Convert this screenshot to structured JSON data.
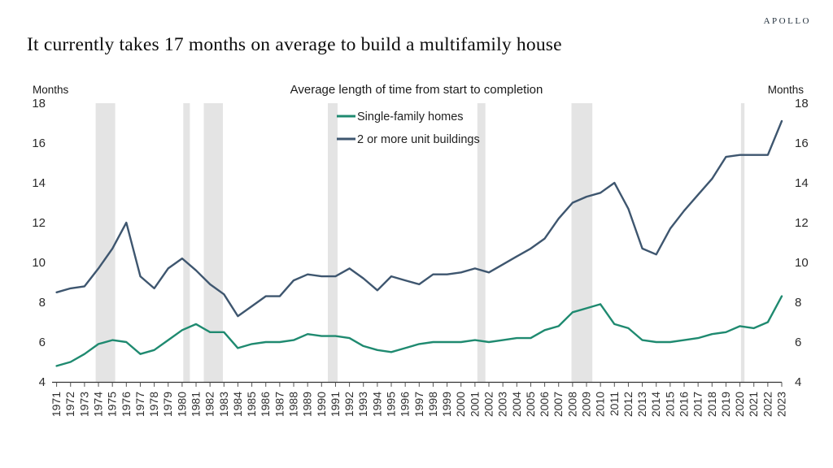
{
  "brand": {
    "logo_text": "APOLLO"
  },
  "header": {
    "title": "It currently takes 17 months on average to build a multifamily house"
  },
  "chart": {
    "subtitle": "Average length of time from start to completion",
    "y_axis_label_left": "Months",
    "y_axis_label_right": "Months"
  },
  "chart_data": {
    "type": "line",
    "title": "Average length of time from start to completion",
    "xlabel": "",
    "ylabel": "Months",
    "ylim": [
      4,
      18
    ],
    "yticks": [
      4,
      6,
      8,
      10,
      12,
      14,
      16,
      18
    ],
    "grid": false,
    "legend_position": "top-center-inside",
    "x": [
      1971,
      1972,
      1973,
      1974,
      1975,
      1976,
      1977,
      1978,
      1979,
      1980,
      1981,
      1982,
      1983,
      1984,
      1985,
      1986,
      1987,
      1988,
      1989,
      1990,
      1991,
      1992,
      1993,
      1994,
      1995,
      1996,
      1997,
      1998,
      1999,
      2000,
      2001,
      2002,
      2003,
      2004,
      2005,
      2006,
      2007,
      2008,
      2009,
      2010,
      2011,
      2012,
      2013,
      2014,
      2015,
      2016,
      2017,
      2018,
      2019,
      2020,
      2021,
      2022,
      2023
    ],
    "series": [
      {
        "name": "Single-family homes",
        "color": "#1f8a70",
        "values": [
          4.8,
          5.0,
          5.4,
          5.9,
          6.1,
          6.0,
          5.4,
          5.6,
          6.1,
          6.6,
          6.9,
          6.5,
          6.5,
          5.7,
          5.9,
          6.0,
          6.0,
          6.1,
          6.4,
          6.3,
          6.3,
          6.2,
          5.8,
          5.6,
          5.5,
          5.7,
          5.9,
          6.0,
          6.0,
          6.0,
          6.1,
          6.0,
          6.1,
          6.2,
          6.2,
          6.6,
          6.8,
          7.5,
          7.7,
          7.9,
          6.9,
          6.7,
          6.1,
          6.0,
          6.0,
          6.1,
          6.2,
          6.4,
          6.5,
          6.8,
          6.7,
          7.0,
          8.3
        ]
      },
      {
        "name": "2 or more unit buildings",
        "color": "#3e566f",
        "values": [
          8.5,
          8.7,
          8.8,
          9.7,
          10.7,
          12.0,
          9.3,
          8.7,
          9.7,
          10.2,
          9.6,
          8.9,
          8.4,
          7.3,
          7.8,
          8.3,
          8.3,
          9.1,
          9.4,
          9.3,
          9.3,
          9.7,
          9.2,
          8.6,
          9.3,
          9.1,
          8.9,
          9.4,
          9.4,
          9.5,
          9.7,
          9.5,
          9.9,
          10.3,
          10.7,
          11.2,
          12.2,
          13.0,
          13.3,
          13.5,
          14.0,
          12.7,
          10.7,
          10.4,
          11.7,
          12.6,
          13.4,
          14.2,
          15.3,
          15.4,
          15.4,
          15.4,
          17.1
        ]
      }
    ],
    "recession_shading_color": "#e4e4e4",
    "recession_bands": [
      [
        1973.8,
        1975.2
      ],
      [
        1980.08,
        1980.55
      ],
      [
        1981.55,
        1982.92
      ],
      [
        1990.45,
        1991.15
      ],
      [
        2001.17,
        2001.75
      ],
      [
        2007.92,
        2009.42
      ],
      [
        2020.08,
        2020.33
      ]
    ]
  }
}
